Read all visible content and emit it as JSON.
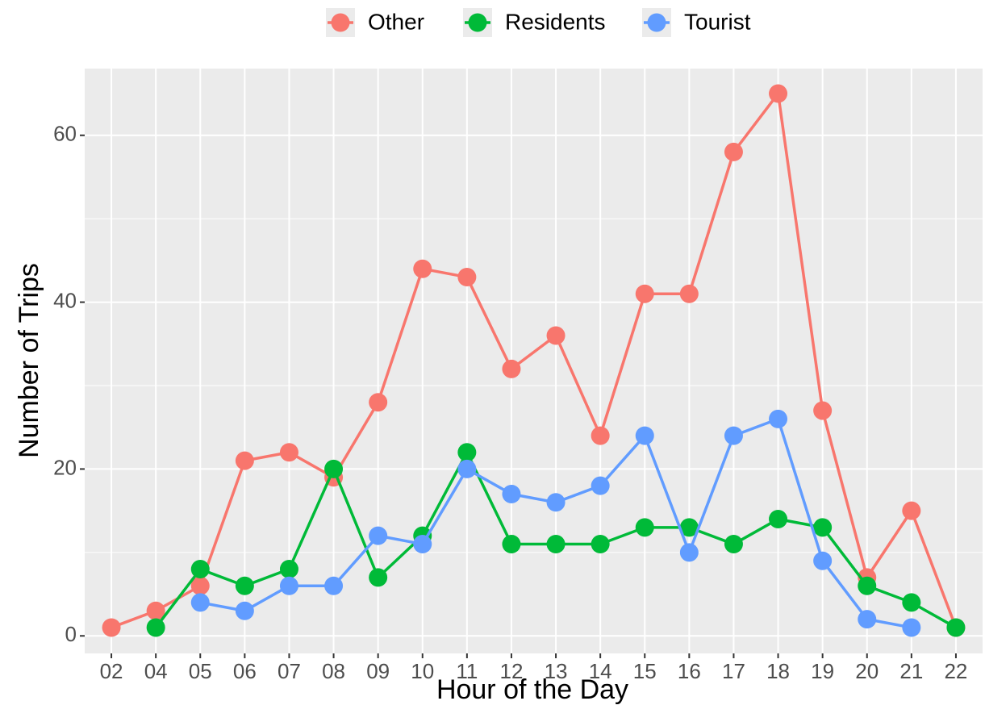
{
  "chart_data": {
    "type": "line",
    "x_label": "Hour of the Day",
    "y_label": "Number of Trips",
    "categories": [
      "02",
      "04",
      "05",
      "06",
      "07",
      "08",
      "09",
      "10",
      "11",
      "12",
      "13",
      "14",
      "15",
      "16",
      "17",
      "18",
      "19",
      "20",
      "21",
      "22"
    ],
    "series": [
      {
        "name": "Other",
        "color": "#F8766D",
        "values": [
          1,
          3,
          6,
          21,
          22,
          19,
          28,
          44,
          43,
          32,
          36,
          24,
          41,
          41,
          58,
          65,
          27,
          7,
          15,
          1
        ]
      },
      {
        "name": "Residents",
        "color": "#00BA38",
        "values": [
          null,
          1,
          8,
          6,
          8,
          20,
          7,
          12,
          22,
          11,
          11,
          11,
          13,
          13,
          11,
          14,
          13,
          6,
          4,
          1
        ]
      },
      {
        "name": "Tourist",
        "color": "#619CFF",
        "values": [
          null,
          null,
          4,
          3,
          6,
          6,
          12,
          11,
          20,
          17,
          16,
          18,
          24,
          10,
          24,
          26,
          9,
          2,
          1,
          null
        ]
      }
    ],
    "ylim": [
      -2.1,
      68
    ],
    "yticks": [
      0,
      20,
      40,
      60
    ],
    "y_minor_ticks": [
      10,
      30,
      50
    ],
    "grid": true,
    "legend": "top"
  }
}
